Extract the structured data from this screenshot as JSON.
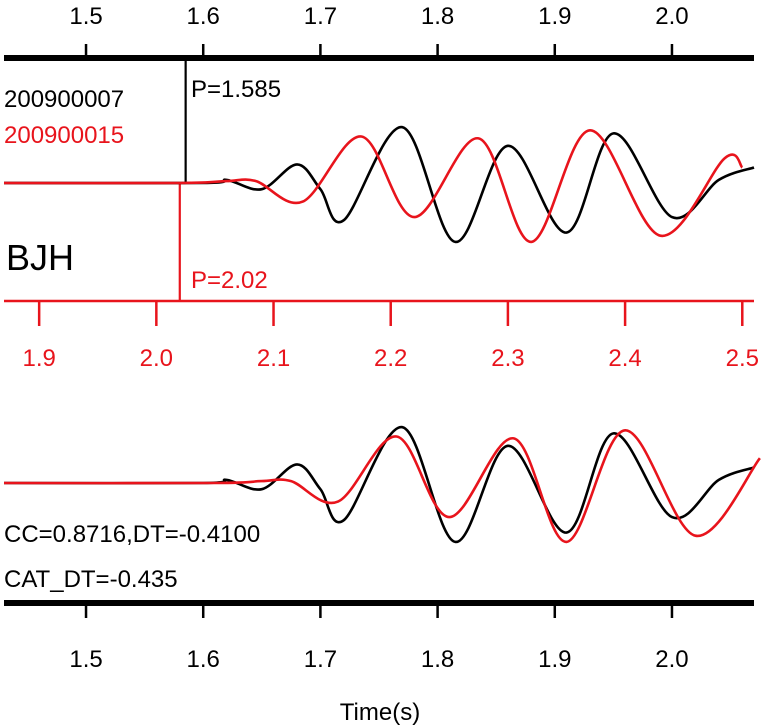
{
  "colors": {
    "black": "#000000",
    "red": "#e8141c"
  },
  "top_panel": {
    "station": "BJH",
    "event_black": "200900007",
    "event_red": "200900015",
    "pick_black": "P=1.585",
    "pick_red": "P=2.02"
  },
  "bottom_panel": {
    "cc_text": "CC=0.8716,DT=-0.4100",
    "cat_text": "CAT_DT=-0.435"
  },
  "xlabel": "Time(s)",
  "chart_data": [
    {
      "type": "line",
      "title": "",
      "station": "BJH",
      "xlabel": "",
      "ylabel": "",
      "top_axis": {
        "xlim": [
          1.43,
          2.07
        ],
        "ticks": [
          1.5,
          1.6,
          1.7,
          1.8,
          1.9,
          2.0
        ]
      },
      "bottom_axis": {
        "xlim": [
          1.87,
          2.51
        ],
        "ticks": [
          1.9,
          2.0,
          2.1,
          2.2,
          2.3,
          2.4,
          2.5
        ]
      },
      "picks": [
        {
          "series": "200900007",
          "time": 1.585,
          "label": "P=1.585"
        },
        {
          "series": "200900015",
          "time": 2.02,
          "label": "P=2.02"
        }
      ],
      "series": [
        {
          "name": "200900007",
          "color": "#000000",
          "axis": "top",
          "x": [
            1.43,
            1.6,
            1.62,
            1.65,
            1.68,
            1.7,
            1.72,
            1.77,
            1.815,
            1.86,
            1.91,
            1.95,
            2.0,
            2.04,
            2.07
          ],
          "y": [
            0,
            0,
            0.05,
            -0.1,
            0.3,
            -0.1,
            -0.6,
            0.9,
            -0.95,
            0.6,
            -0.8,
            0.8,
            -0.55,
            0.05,
            0.25
          ]
        },
        {
          "name": "200900015",
          "color": "#e8141c",
          "axis": "bottom",
          "x": [
            1.87,
            2.02,
            2.06,
            2.085,
            2.125,
            2.175,
            2.22,
            2.275,
            2.32,
            2.37,
            2.43,
            2.485,
            2.5
          ],
          "y": [
            0,
            0,
            0.03,
            0.03,
            -0.3,
            0.75,
            -0.55,
            0.72,
            -0.95,
            0.85,
            -0.85,
            0.4,
            0.25
          ]
        }
      ]
    },
    {
      "type": "line",
      "title": "",
      "xlabel": "Time(s)",
      "ylabel": "",
      "annotations": [
        "CC=0.8716,DT=-0.4100",
        "CAT_DT=-0.435"
      ],
      "xlim": [
        1.43,
        2.07
      ],
      "ticks": [
        1.5,
        1.6,
        1.7,
        1.8,
        1.9,
        2.0
      ],
      "series": [
        {
          "name": "200900007",
          "color": "#000000",
          "x": [
            1.43,
            1.6,
            1.62,
            1.65,
            1.68,
            1.7,
            1.72,
            1.77,
            1.815,
            1.86,
            1.91,
            1.95,
            2.0,
            2.04,
            2.07
          ],
          "y": [
            0,
            0,
            0.05,
            -0.1,
            0.3,
            -0.1,
            -0.6,
            0.9,
            -0.95,
            0.6,
            -0.8,
            0.8,
            -0.55,
            0.05,
            0.25
          ]
        },
        {
          "name": "200900015",
          "color": "#e8141c",
          "x": [
            1.43,
            1.61,
            1.65,
            1.675,
            1.715,
            1.765,
            1.81,
            1.865,
            1.91,
            1.96,
            2.02,
            2.075
          ],
          "y": [
            0,
            0,
            0.03,
            0.03,
            -0.3,
            0.75,
            -0.55,
            0.72,
            -0.95,
            0.85,
            -0.85,
            0.4
          ]
        }
      ]
    }
  ]
}
